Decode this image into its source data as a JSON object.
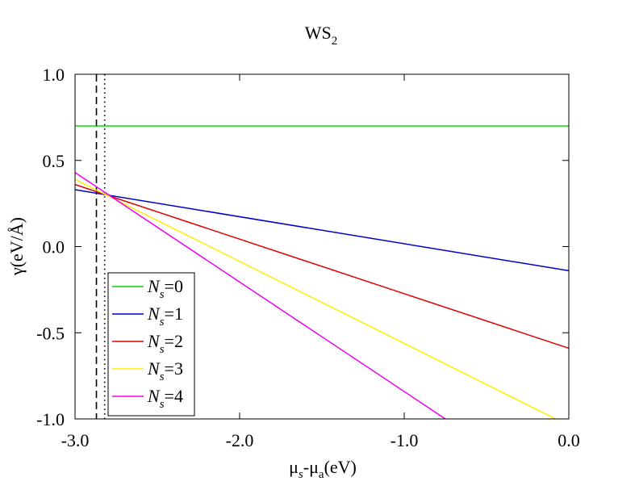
{
  "chart_data": {
    "type": "line",
    "title": {
      "main": "WS",
      "sub": "2"
    },
    "xlabel": {
      "a": "μ",
      "a_sub": "s",
      "b": "-μ",
      "b_sub": "a",
      "c": "(eV)"
    },
    "ylabel": "γ(eV/Å)",
    "xlim": [
      -3.0,
      0.0
    ],
    "ylim": [
      -1.0,
      1.0
    ],
    "x_ticks": [
      {
        "value": -3.0,
        "label": "-3.0"
      },
      {
        "value": -2.0,
        "label": "-2.0"
      },
      {
        "value": -1.0,
        "label": "-1.0"
      },
      {
        "value": 0.0,
        "label": "0.0"
      }
    ],
    "y_ticks": [
      {
        "value": 1.0,
        "label": "1.0"
      },
      {
        "value": 0.5,
        "label": "0.5"
      },
      {
        "value": 0.0,
        "label": "0.0"
      },
      {
        "value": -0.5,
        "label": "-0.5"
      },
      {
        "value": -1.0,
        "label": "-1.0"
      }
    ],
    "vertical_lines": [
      {
        "x": -2.87,
        "style": "dashed"
      },
      {
        "x": -2.82,
        "style": "dotted"
      }
    ],
    "legend_placement": "bottom-left",
    "series": [
      {
        "name": "0",
        "color": "#00dd00",
        "x": [
          -3.0,
          0.0
        ],
        "y": [
          0.7,
          0.7
        ]
      },
      {
        "name": "1",
        "color": "#0000cc",
        "x": [
          -3.0,
          0.0
        ],
        "y": [
          0.33,
          -0.14
        ]
      },
      {
        "name": "2",
        "color": "#dd0000",
        "x": [
          -3.0,
          0.0
        ],
        "y": [
          0.36,
          -0.59
        ]
      },
      {
        "name": "3",
        "color": "#ffee00",
        "x": [
          -3.0,
          -0.08
        ],
        "y": [
          0.39,
          -1.0
        ]
      },
      {
        "name": "4",
        "color": "#ee00ee",
        "x": [
          -3.0,
          -0.75
        ],
        "y": [
          0.43,
          -1.0
        ]
      }
    ],
    "legend_prefix": "N",
    "legend_prefix_sub": "s",
    "legend_eq": "="
  }
}
